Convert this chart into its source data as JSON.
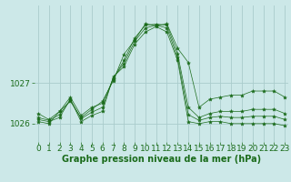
{
  "title": "Graphe pression niveau de la mer (hPa)",
  "x_ticks": [
    0,
    1,
    2,
    3,
    4,
    5,
    6,
    7,
    8,
    9,
    10,
    11,
    12,
    13,
    14,
    15,
    16,
    17,
    18,
    19,
    20,
    21,
    22,
    23
  ],
  "y_ticks": [
    1026,
    1027
  ],
  "ylim": [
    1025.55,
    1028.9
  ],
  "xlim": [
    -0.3,
    23.3
  ],
  "bg_color": "#cce8e8",
  "grid_color": "#aacccc",
  "line_color": "#1a6b1a",
  "marker": "*",
  "series": [
    [
      1026.05,
      1026.0,
      1026.3,
      1026.55,
      1026.15,
      1026.35,
      1026.55,
      1027.05,
      1027.7,
      1028.05,
      1028.45,
      1028.4,
      1028.45,
      1027.85,
      1027.5,
      1026.4,
      1026.6,
      1026.65,
      1026.7,
      1026.7,
      1026.8,
      1026.8,
      1026.8,
      1026.65
    ],
    [
      1026.1,
      1026.05,
      1026.15,
      1026.6,
      1026.05,
      1026.2,
      1026.3,
      1027.15,
      1027.4,
      1027.95,
      1028.25,
      1028.38,
      1028.25,
      1027.55,
      1026.05,
      1026.0,
      1026.05,
      1026.05,
      1026.0,
      1026.0,
      1026.0,
      1026.0,
      1026.0,
      1025.95
    ],
    [
      1026.25,
      1026.1,
      1026.3,
      1026.65,
      1026.2,
      1026.4,
      1026.5,
      1027.1,
      1027.55,
      1028.1,
      1028.42,
      1028.44,
      1028.42,
      1027.72,
      1026.4,
      1026.15,
      1026.25,
      1026.3,
      1026.3,
      1026.3,
      1026.35,
      1026.35,
      1026.35,
      1026.25
    ],
    [
      1026.15,
      1026.08,
      1026.22,
      1026.58,
      1026.12,
      1026.28,
      1026.4,
      1027.12,
      1027.48,
      1028.02,
      1028.35,
      1028.41,
      1028.35,
      1027.62,
      1026.22,
      1026.08,
      1026.15,
      1026.18,
      1026.15,
      1026.15,
      1026.18,
      1026.18,
      1026.18,
      1026.1
    ]
  ],
  "fontsize_label": 7,
  "fontsize_tick": 6.5
}
